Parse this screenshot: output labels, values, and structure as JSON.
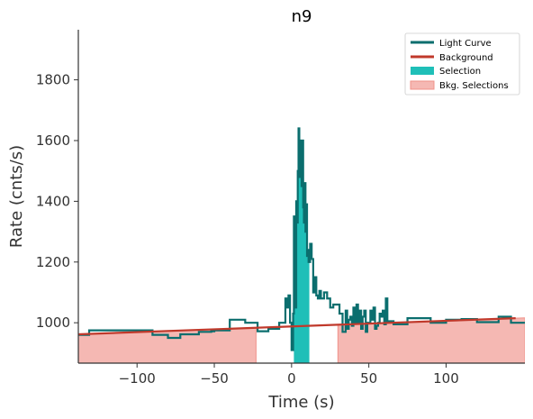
{
  "chart_data": {
    "type": "line",
    "title": "n9",
    "xlabel": "Time (s)",
    "ylabel": "Rate (cnts/s)",
    "xlim": [
      -138,
      151
    ],
    "ylim": [
      867,
      1965
    ],
    "xticks": [
      -100,
      -50,
      0,
      50,
      100
    ],
    "xtick_labels": [
      "−100",
      "−50",
      "0",
      "50",
      "100"
    ],
    "yticks": [
      1000,
      1200,
      1400,
      1600,
      1800
    ],
    "ytick_labels": [
      "1000",
      "1200",
      "1400",
      "1600",
      "1800"
    ],
    "legend_position": "top-right",
    "grid": false,
    "colors": {
      "light_curve": "#0b6e6e",
      "background": "#c0392b",
      "selection": "#1fbfb8",
      "bkg_selection": "#f0928a"
    },
    "series": [
      {
        "name": "Light Curve",
        "kind": "step",
        "x": [
          -138,
          -131,
          -128,
          -90,
          -80,
          -72,
          -64,
          -60,
          -52,
          -50,
          -40,
          -30,
          -22,
          -15,
          -8,
          -4,
          -3,
          -2,
          -1,
          0,
          1,
          1.5,
          2,
          2.5,
          3,
          3.5,
          4,
          4.5,
          5,
          5.5,
          6,
          6.5,
          7,
          7.5,
          8,
          8.5,
          9,
          9.5,
          10,
          10.5,
          11,
          12,
          13,
          14,
          15,
          16,
          17,
          18,
          19,
          21,
          23,
          25,
          27,
          29,
          31,
          33,
          35,
          36,
          37,
          38,
          39,
          40,
          41,
          42,
          43,
          44,
          45,
          46,
          47,
          48,
          49,
          50,
          51,
          52,
          53,
          54,
          55,
          56,
          57,
          58,
          59,
          60,
          61,
          62,
          66,
          75,
          90,
          100,
          110,
          120,
          134,
          142,
          151
        ],
        "y": [
          960,
          975,
          975,
          960,
          950,
          962,
          962,
          970,
          972,
          975,
          1010,
          1000,
          972,
          980,
          1000,
          1080,
          1050,
          1090,
          1000,
          910,
          1030,
          1350,
          1180,
          1050,
          1400,
          1330,
          1500,
          1640,
          1480,
          1600,
          1580,
          1450,
          1600,
          1380,
          1330,
          1460,
          1300,
          1390,
          1220,
          1240,
          1200,
          1260,
          1210,
          1100,
          1150,
          1090,
          1080,
          1105,
          1080,
          1100,
          1080,
          1050,
          1060,
          1060,
          1030,
          970,
          1040,
          980,
          1010,
          1020,
          990,
          1050,
          1000,
          1060,
          1000,
          1040,
          980,
          1020,
          1040,
          970,
          1000,
          1000,
          1040,
          1010,
          1050,
          980,
          990,
          1000,
          1030,
          1020,
          1040,
          995,
          1080,
          1005,
          995,
          1015,
          1000,
          1010,
          1012,
          1002,
          1020,
          1000,
          1000
        ]
      },
      {
        "name": "Background",
        "kind": "line",
        "x": [
          -138,
          145
        ],
        "y": [
          962,
          1015
        ]
      }
    ],
    "selection": {
      "name": "Selection",
      "x_range": [
        1.5,
        11.5
      ]
    },
    "bkg_selections": {
      "name": "Bkg. Selections",
      "ranges": [
        [
          -138,
          -23
        ],
        [
          30,
          151
        ]
      ]
    }
  }
}
